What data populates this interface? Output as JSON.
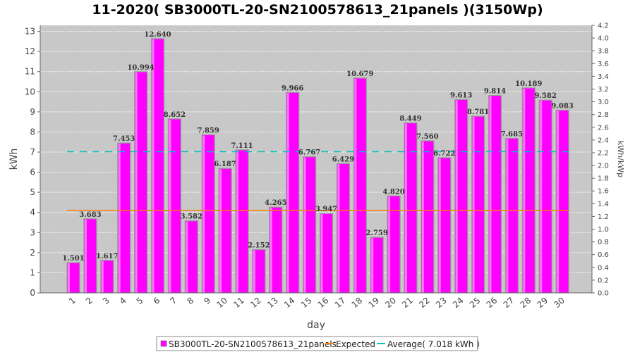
{
  "chart_data": {
    "type": "bar",
    "title": "11-2020( SB3000TL-20-SN2100578613_21panels )(3150Wp)",
    "xlabel": "day",
    "ylabel": "kWh",
    "y2label": "kWh/kWp",
    "ylim": [
      0,
      13.3
    ],
    "yticks": [
      0,
      1,
      2,
      3,
      4,
      5,
      6,
      7,
      8,
      9,
      10,
      11,
      12,
      13
    ],
    "y2ticks": [
      "0.0",
      "0.2",
      "0.4",
      "0.6",
      "0.8",
      "1.0",
      "1.2",
      "1.4",
      "1.6",
      "1.8",
      "2.0",
      "2.2",
      "2.4",
      "2.6",
      "2.8",
      "3.0",
      "3.2",
      "3.4",
      "3.6",
      "3.8",
      "4.0",
      "4.2"
    ],
    "categories": [
      "1",
      "2",
      "3",
      "4",
      "5",
      "6",
      "7",
      "8",
      "9",
      "10",
      "11",
      "12",
      "13",
      "14",
      "15",
      "16",
      "17",
      "18",
      "19",
      "20",
      "21",
      "22",
      "23",
      "24",
      "25",
      "26",
      "27",
      "28",
      "29",
      "30"
    ],
    "series": [
      {
        "name": "SB3000TL-20-SN2100578613_21panels",
        "color": "#ff00ff",
        "values": [
          1.501,
          3.683,
          1.617,
          7.453,
          10.994,
          12.64,
          8.652,
          3.582,
          7.859,
          6.187,
          7.111,
          2.152,
          4.265,
          9.966,
          6.767,
          3.947,
          6.429,
          10.679,
          2.759,
          4.82,
          8.449,
          7.56,
          6.722,
          9.613,
          8.781,
          9.814,
          7.685,
          10.189,
          9.582,
          9.083
        ],
        "labels": [
          "1.501",
          "3.683",
          "1.617",
          "7.453",
          "10.994",
          "12.640",
          "8.652",
          "3.582",
          "7.859",
          "6.187",
          "7.111",
          "2.152",
          "4.265",
          "9.966",
          "6.767",
          "3.947",
          "6.429",
          "10.679",
          "2.759",
          "4.820",
          "8.449",
          "7.560",
          "6.722",
          "9.613",
          "8.781",
          "9.814",
          "7.685",
          "10.189",
          "9.582",
          "9.083"
        ]
      }
    ],
    "lines": [
      {
        "name": "Expected",
        "color": "#ff8000",
        "value": 4.1,
        "dashed": false
      },
      {
        "name": "Average( 7.018 kWh )",
        "color": "#00c0c0",
        "value": 7.018,
        "dashed": true
      }
    ],
    "grid": true,
    "legend": "bottom"
  }
}
